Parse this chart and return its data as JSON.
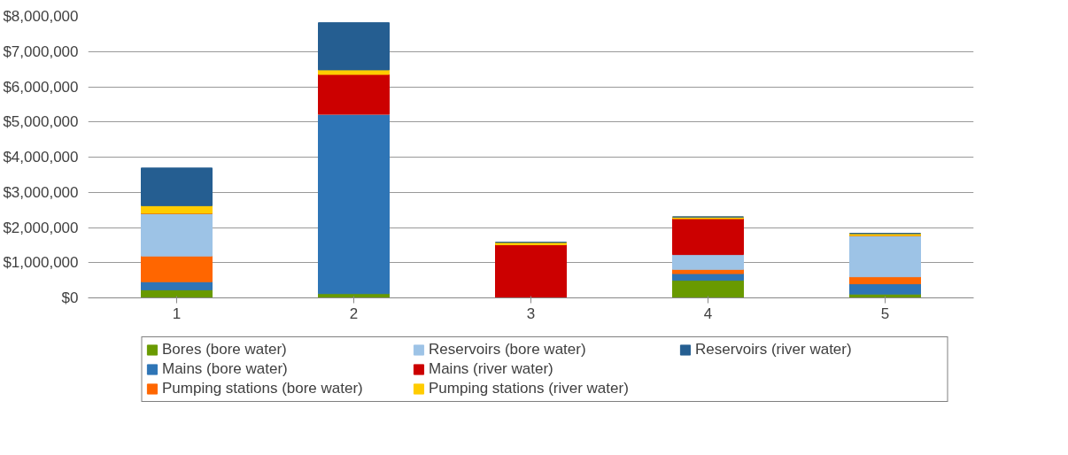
{
  "chart_data": {
    "type": "bar",
    "stacked": true,
    "categories": [
      "1",
      "2",
      "3",
      "4",
      "5"
    ],
    "series": [
      {
        "name": "Bores (bore water)",
        "color": "#699a00",
        "values": [
          230000,
          120000,
          0,
          500000,
          110000
        ]
      },
      {
        "name": "Mains (bore water)",
        "color": "#2e75b6",
        "values": [
          230000,
          5100000,
          0,
          190000,
          290000
        ]
      },
      {
        "name": "Pumping stations (bore water)",
        "color": "#ff6600",
        "values": [
          730000,
          0,
          0,
          120000,
          200000
        ]
      },
      {
        "name": "Reservoirs (bore water)",
        "color": "#9dc3e6",
        "values": [
          1210000,
          0,
          0,
          420000,
          1170000
        ]
      },
      {
        "name": "Mains (river water)",
        "color": "#cc0000",
        "values": [
          0,
          1130000,
          1510000,
          1020000,
          0
        ]
      },
      {
        "name": "Pumping stations (river water)",
        "color": "#ffcc00",
        "values": [
          220000,
          130000,
          70000,
          50000,
          60000
        ]
      },
      {
        "name": "Reservoirs (river water)",
        "color": "#255e91",
        "values": [
          1070000,
          1340000,
          0,
          0,
          0
        ]
      }
    ],
    "ylim": [
      0,
      8000000
    ],
    "yticks": [
      {
        "value": 0,
        "label": "$0"
      },
      {
        "value": 1000000,
        "label": "$1,000,000"
      },
      {
        "value": 2000000,
        "label": "$2,000,000"
      },
      {
        "value": 3000000,
        "label": "$3,000,000"
      },
      {
        "value": 4000000,
        "label": "$4,000,000"
      },
      {
        "value": 5000000,
        "label": "$5,000,000"
      },
      {
        "value": 6000000,
        "label": "$6,000,000"
      },
      {
        "value": 7000000,
        "label": "$7,000,000"
      },
      {
        "value": 8000000,
        "label": "$8,000,000"
      }
    ],
    "grid": "y",
    "legend": "bottom"
  }
}
